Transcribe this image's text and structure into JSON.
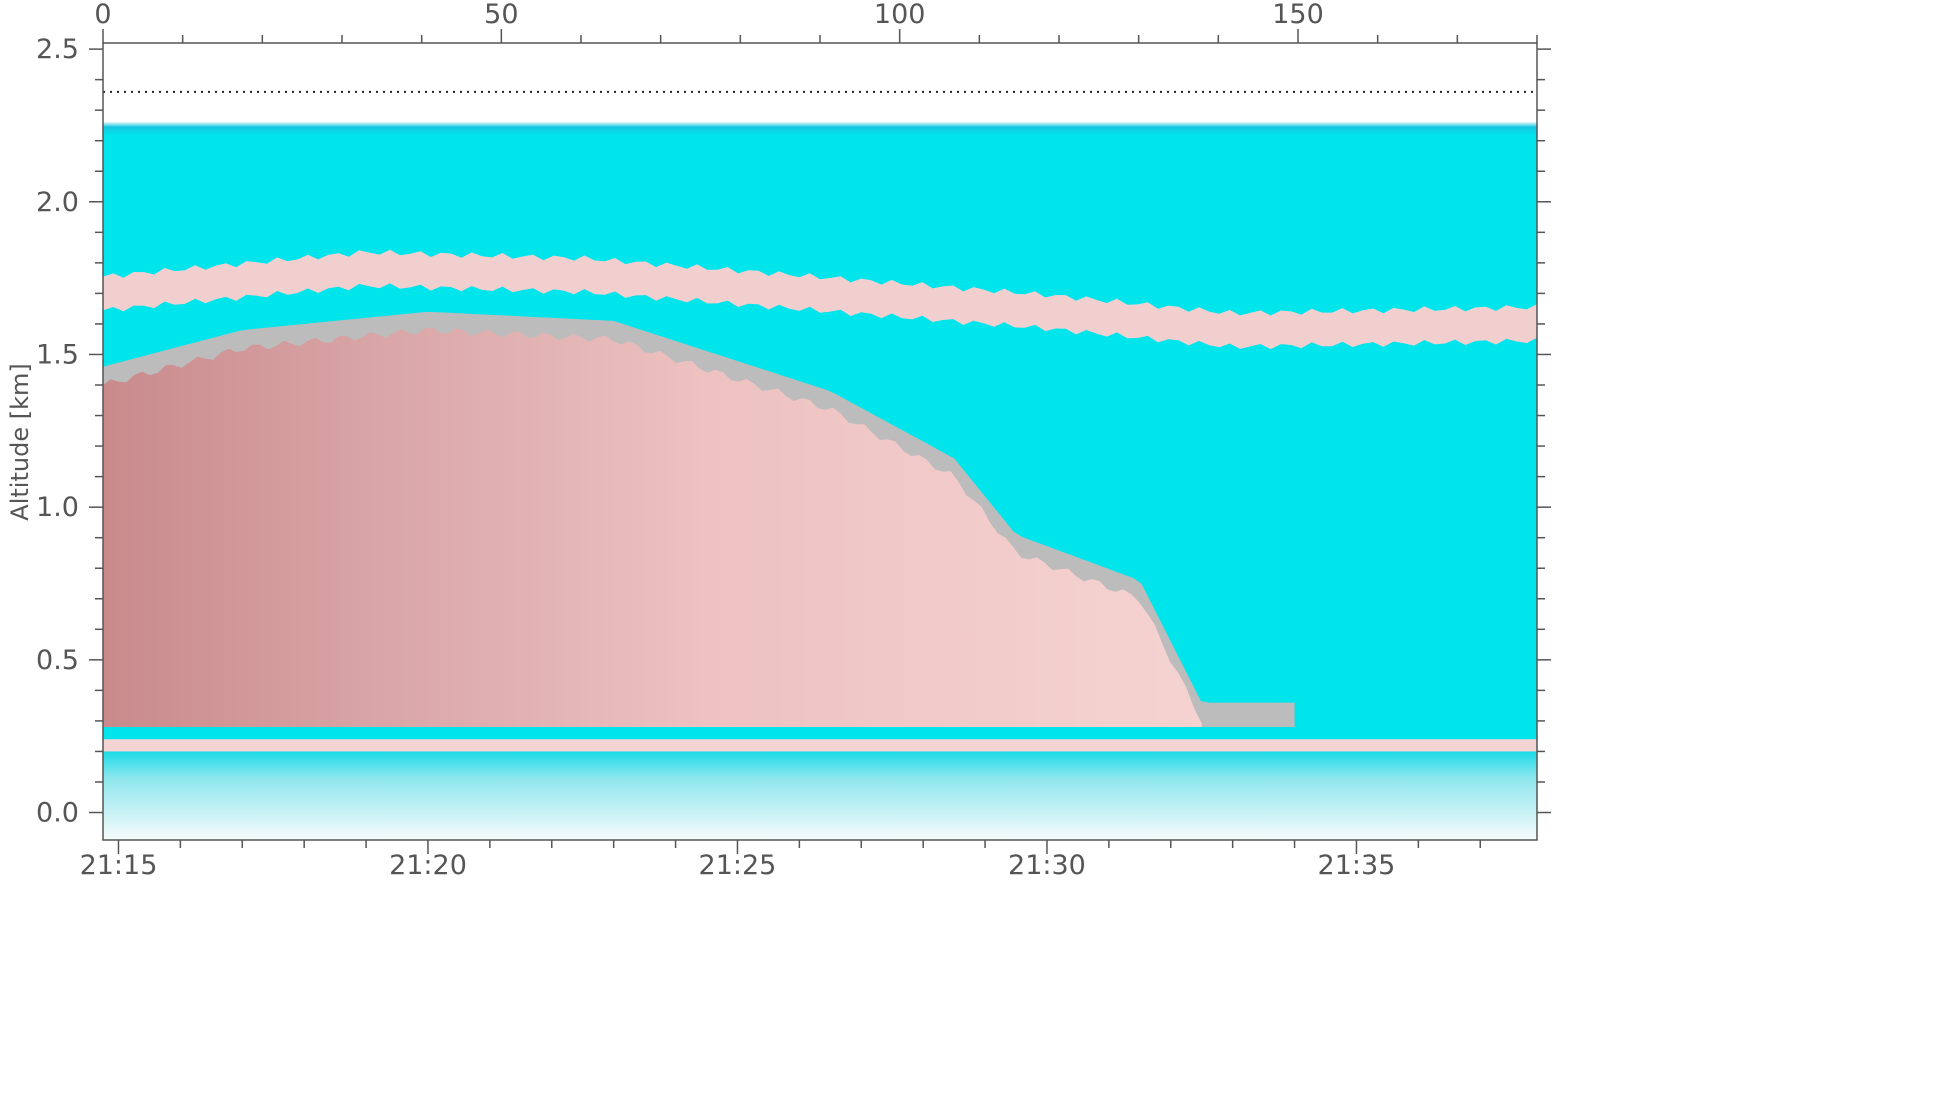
{
  "chart_data": {
    "type": "heatmap",
    "title": "",
    "ylabel": "Altitude [km]",
    "xlabel_bottom": "",
    "xlabel_top": "",
    "y_range": [
      -0.09,
      2.52
    ],
    "y_ticks": [
      "0.0",
      "0.5",
      "1.0",
      "1.5",
      "2.0",
      "2.5"
    ],
    "x_bottom_range": [
      "21:14:45",
      "21:37:55"
    ],
    "x_bottom_ticks": [
      "21:15",
      "21:20",
      "21:25",
      "21:30",
      "21:35"
    ],
    "x_top_range": [
      0,
      180
    ],
    "x_top_ticks": [
      "0",
      "50",
      "100",
      "150"
    ],
    "colors": {
      "background_clear": "#00e4ec",
      "cloud_light": "#f3cccc",
      "cloud_dark": "#c98a8c",
      "transition_gray": "#bcbcbc",
      "surface_noise": "#f4f9fa",
      "dotted_line": "#222222"
    },
    "features": {
      "data_top_km": 2.25,
      "dotted_line_altitude_km": 2.36,
      "upper_layer": {
        "name": "thin cloud layer",
        "center_km": [
          {
            "t": "21:14:45",
            "km": 1.7
          },
          {
            "t": "21:19:00",
            "km": 1.78
          },
          {
            "t": "21:22:30",
            "km": 1.76
          },
          {
            "t": "21:30:00",
            "km": 1.64
          },
          {
            "t": "21:33:00",
            "km": 1.58
          },
          {
            "t": "21:37:55",
            "km": 1.6
          }
        ]
      },
      "main_cloud": {
        "base_km": 0.28,
        "top_km": [
          {
            "t": "21:14:45",
            "km": 1.4
          },
          {
            "t": "21:17:00",
            "km": 1.52
          },
          {
            "t": "21:20:00",
            "km": 1.58
          },
          {
            "t": "21:23:00",
            "km": 1.55
          },
          {
            "t": "21:26:30",
            "km": 1.32
          },
          {
            "t": "21:28:30",
            "km": 1.1
          },
          {
            "t": "21:29:30",
            "km": 0.85
          },
          {
            "t": "21:31:30",
            "km": 0.7
          },
          {
            "t": "21:32:30",
            "km": 0.3
          }
        ]
      },
      "surface_layer_km": 0.22
    }
  }
}
